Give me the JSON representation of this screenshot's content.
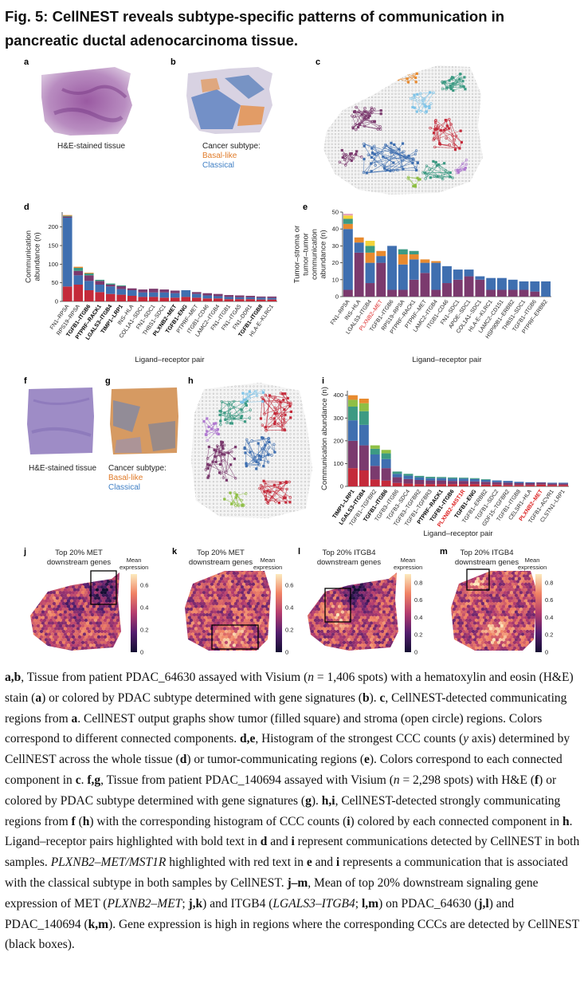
{
  "figure": {
    "title": "Fig. 5: CellNEST reveals subtype-specific patterns of communication in pancreatic ductal adenocarcinoma tissue."
  },
  "panels": {
    "a": {
      "label": "a",
      "caption": "H&E-stained tissue"
    },
    "b": {
      "label": "b",
      "caption_lead": "Cancer subtype:",
      "caption_basal": "Basal-like",
      "caption_classical": "Classical"
    },
    "c": {
      "label": "c"
    },
    "d": {
      "label": "d"
    },
    "e": {
      "label": "e"
    },
    "f": {
      "label": "f",
      "caption": "H&E-stained tissue"
    },
    "g": {
      "label": "g",
      "caption_lead": "Cancer subtype:",
      "caption_basal": "Basal-like",
      "caption_classical": "Classical"
    },
    "h": {
      "label": "h"
    },
    "i": {
      "label": "i"
    },
    "j": {
      "label": "j",
      "title": "Top 20% MET downstream genes",
      "cbar_title": "Mean expression",
      "ticks": [
        "0.6",
        "0.4",
        "0.2",
        "0"
      ],
      "range": [
        0,
        0.7
      ]
    },
    "k": {
      "label": "k",
      "title": "Top 20%  MET downstream genes",
      "cbar_title": "Mean expression",
      "ticks": [
        "0.6",
        "0.4",
        "0.2",
        "0"
      ],
      "range": [
        0,
        0.7
      ]
    },
    "l": {
      "label": "l",
      "title": "Top 20% ITGB4 downstream genes",
      "cbar_title": "Mean expression",
      "ticks": [
        "0.8",
        "0.6",
        "0.4",
        "0.2",
        "0"
      ],
      "range": [
        0,
        0.9
      ]
    },
    "m": {
      "label": "m",
      "title": "Top 20% ITGB4 downstream genes",
      "cbar_title": "Mean expression",
      "ticks": [
        "0.8",
        "0.6",
        "0.4",
        "0.2",
        "0"
      ],
      "range": [
        0,
        0.9
      ]
    }
  },
  "colors": {
    "component_palette": [
      "#c42a3a",
      "#7b3a6e",
      "#3f6fb0",
      "#3c9a83",
      "#e88a2e",
      "#f3d33a",
      "#e6a0b8",
      "#8fbf45",
      "#7fc4e8",
      "#b07ad0"
    ],
    "basal": "#e07b29",
    "classical": "#3f7fc4",
    "tumor_fill": "#8a3a6b",
    "stroma": "#9a9a9a"
  },
  "chart_data": [
    {
      "panel": "d",
      "type": "bar",
      "stacked": true,
      "xlabel": "Ligand–receptor pair",
      "ylabel": "Communication abundance (n)",
      "ylim": [
        0,
        240
      ],
      "yticks": [
        0,
        50,
        100,
        150,
        200
      ],
      "categories": [
        "FN1–RPSA",
        "RPS19–RPSA",
        "TGFB1–ITGB6",
        "PTPRF–RACK1",
        "LGALS3–ITGB4",
        "TIMP1–LRP1",
        "INS–HLA",
        "COL1A1–SDC1",
        "FN1–SDC1",
        "THBS1–SDC1",
        "PLXNB2–MET",
        "TGFB1–ENG",
        "PTPRF–MET",
        "ITGB1–CD46",
        "LAMC2–ITGB4",
        "FN1–ITGB1",
        "FN1–ITGA5",
        "FN1–DDR1",
        "TGFB1–ITGB8",
        "HLA-E–KLRC1"
      ],
      "label_styles": [
        "normal",
        "normal",
        "bold",
        "bold",
        "bold",
        "bold",
        "normal",
        "normal",
        "normal",
        "normal",
        "bold",
        "bold",
        "normal",
        "normal",
        "normal",
        "normal",
        "normal",
        "normal",
        "bold",
        "normal"
      ],
      "stacks": [
        [
          40,
          185,
          3,
          2,
          2
        ],
        [
          45,
          25,
          12,
          8,
          3
        ],
        [
          30,
          25,
          15,
          5,
          2
        ],
        [
          25,
          20,
          10,
          3
        ],
        [
          20,
          20,
          5,
          3
        ],
        [
          18,
          15,
          8,
          2
        ],
        [
          15,
          15,
          5
        ],
        [
          12,
          12,
          8
        ],
        [
          12,
          12,
          10
        ],
        [
          10,
          14,
          8
        ],
        [
          10,
          12,
          7
        ],
        [
          12,
          18
        ],
        [
          10,
          10,
          5
        ],
        [
          8,
          8,
          6
        ],
        [
          8,
          6,
          6
        ],
        [
          6,
          6,
          5
        ],
        [
          6,
          5,
          5
        ],
        [
          6,
          5,
          4
        ],
        [
          5,
          5,
          3
        ],
        [
          5,
          4,
          4
        ]
      ],
      "stack_colors": [
        0,
        2,
        1,
        3,
        4
      ]
    },
    {
      "panel": "e",
      "type": "bar",
      "stacked": true,
      "xlabel": "Ligand–receptor pair",
      "ylabel": "Tumor–stroma or tumor–tumor communication abundance (n)",
      "ylim": [
        0,
        50
      ],
      "yticks": [
        0,
        10,
        20,
        30,
        40,
        50
      ],
      "categories": [
        "FN1–RPSA",
        "INS–HLA",
        "LGALS3–ITGB4",
        "PLXNB2–MET",
        "TGFB1–ITGB6",
        "RPS19–RPSA",
        "PTPRF–RACK1",
        "PTPRF–MET",
        "LAMC2–ITGB4",
        "ITGB1–CD46",
        "FN1–SDC1",
        "APOE–SDC1",
        "COL1A1–SDC1",
        "HLA-E–KLRC1",
        "LAMC2–CD151",
        "HSP90B1–ERBB2",
        "THBS1–SDC1",
        "TGFB1–ITGB6",
        "PTPRF–ERBB2"
      ],
      "label_styles": [
        "normal",
        "normal",
        "normal",
        "red",
        "normal",
        "normal",
        "normal",
        "normal",
        "normal",
        "normal",
        "normal",
        "normal",
        "normal",
        "normal",
        "normal",
        "normal",
        "normal",
        "normal",
        "normal"
      ],
      "stacks": [
        [
          4,
          36,
          3,
          3,
          2,
          1
        ],
        [
          26,
          6,
          3
        ],
        [
          8,
          12,
          6,
          4,
          3
        ],
        [
          20,
          4,
          3
        ],
        [
          4,
          26
        ],
        [
          4,
          15,
          6,
          3
        ],
        [
          10,
          12,
          3,
          2
        ],
        [
          14,
          6,
          2
        ],
        [
          4,
          16,
          1
        ],
        [
          8,
          10
        ],
        [
          10,
          6
        ],
        [
          12,
          4
        ],
        [
          10,
          2
        ],
        [
          4,
          7
        ],
        [
          4,
          7
        ],
        [
          4,
          6
        ],
        [
          4,
          5
        ],
        [
          3,
          6
        ],
        [
          0,
          9
        ]
      ],
      "stack_colors": [
        1,
        2,
        4,
        3,
        5,
        6
      ]
    },
    {
      "panel": "i",
      "type": "bar",
      "stacked": true,
      "xlabel": "Ligand–receptor pair",
      "ylabel": "Communication abundance (n)",
      "ylim": [
        0,
        420
      ],
      "yticks": [
        0,
        100,
        200,
        300,
        400
      ],
      "categories": [
        "TIMP1–LRP1",
        "LGALS3–ITGB4",
        "TGFB1–TGFBR2",
        "TGFB1–ITGB6",
        "TGFB3–ITGB6",
        "TGFB3–SDC4",
        "TGFB3–TGFBR2",
        "TGFB1–TGFBR3",
        "PTPRF–RACK1",
        "TGFB1–ITGB6",
        "PLXNB2–MST1R",
        "TGFB1–ENG",
        "TGFB1–ERBB2",
        "TGFB1–SDC2",
        "GDF15–TGFBR2",
        "TGFB1–ITGB8",
        "CELSR1–HLA",
        "PLXNB2–MET",
        "TGFB1–ACVR1",
        "CLSTN1–LRP1"
      ],
      "label_styles": [
        "bold",
        "bold",
        "normal",
        "bold",
        "normal",
        "normal",
        "normal",
        "normal",
        "bold",
        "bold",
        "redbold",
        "bold",
        "normal",
        "normal",
        "normal",
        "normal",
        "normal",
        "redbold",
        "normal",
        "normal"
      ],
      "stacks": [
        [
          80,
          120,
          90,
          60,
          30,
          20
        ],
        [
          70,
          110,
          90,
          60,
          35,
          20
        ],
        [
          30,
          60,
          50,
          25,
          15
        ],
        [
          25,
          55,
          40,
          25,
          15
        ],
        [
          15,
          25,
          15,
          10
        ],
        [
          12,
          20,
          15,
          8
        ],
        [
          10,
          18,
          12,
          6
        ],
        [
          10,
          16,
          10,
          6
        ],
        [
          10,
          16,
          10,
          5
        ],
        [
          10,
          14,
          10,
          5
        ],
        [
          10,
          14,
          10,
          4
        ],
        [
          10,
          12,
          10,
          4
        ],
        [
          8,
          12,
          8,
          3
        ],
        [
          8,
          10,
          8
        ],
        [
          6,
          10,
          8
        ],
        [
          6,
          8,
          6
        ],
        [
          6,
          8,
          4
        ],
        [
          8,
          8,
          2
        ],
        [
          6,
          6,
          4
        ],
        [
          6,
          6,
          4
        ]
      ],
      "stack_colors": [
        0,
        1,
        2,
        3,
        7,
        4
      ]
    }
  ],
  "legend": {
    "s1": "a,b",
    "t1": ", Tissue from patient PDAC_64630 assayed with Visium (",
    "n1": "n",
    "t2": " = 1,406 spots) with a hematoxylin and eosin (H&E) stain (",
    "s2": "a",
    "t3": ") or colored by PDAC subtype determined with gene signatures (",
    "s3": "b",
    "t4": "). ",
    "s4": "c",
    "t5": ", CellNEST-detected communicating regions from ",
    "s5": "a",
    "t6": ". CellNEST output graphs show tumor (filled square) and stroma (open circle) regions. Colors correspond to different connected components. ",
    "s6": "d,e",
    "t7": ", Histogram of the strongest CCC counts (",
    "n2": "y",
    "t8": " axis) determined by CellNEST across the whole tissue (",
    "s7": "d",
    "t9": ") or tumor-communicating regions (",
    "s8": "e",
    "t10": "). Colors correspond to each connected component in ",
    "s9": "c",
    "t11": ". ",
    "s10": "f,g",
    "t12": ", Tissue from patient PDAC_140694 assayed with Visium (",
    "n3": "n",
    "t13": " = 2,298 spots) with H&E (",
    "s11": "f",
    "t14": ") or colored by PDAC subtype determined with gene signatures (",
    "s12": "g",
    "t15": "). ",
    "s13": "h,i",
    "t16": ", CellNEST-detected strongly communicating regions from ",
    "s14": "f",
    "t17": " (",
    "s15": "h",
    "t18": ") with the corresponding histogram of CCC counts (",
    "s16": "i",
    "t19": ") colored by each connected component in ",
    "s17": "h",
    "t20": ". Ligand–receptor pairs highlighted with bold text in ",
    "s18": "d",
    "t21": " and ",
    "s19": "i",
    "t22": " represent communications detected by CellNEST in both samples. ",
    "n4": "PLXNB2–MET/MST1R",
    "t23": " highlighted with red text in ",
    "s20": "e",
    "t24": " and ",
    "s21": "i",
    "t25": " represents a communication that is associated with the classical subtype in both samples by CellNEST. ",
    "s22": "j–m",
    "t26": ", Mean of top 20% downstream signaling gene expression of MET (",
    "n5": "PLXNB2–MET",
    "t27": "; ",
    "s23": "j,k",
    "t28": ") and ITGB4 (",
    "n6": "LGALS3–ITGB4",
    "t29": "; ",
    "s24": "l,m",
    "t30": ") on PDAC_64630 (",
    "s25": "j,l",
    "t31": ") and PDAC_140694 (",
    "s26": "k,m",
    "t32": "). Gene expression is high in regions where the corresponding CCCs are detected by CellNEST (black boxes)."
  }
}
